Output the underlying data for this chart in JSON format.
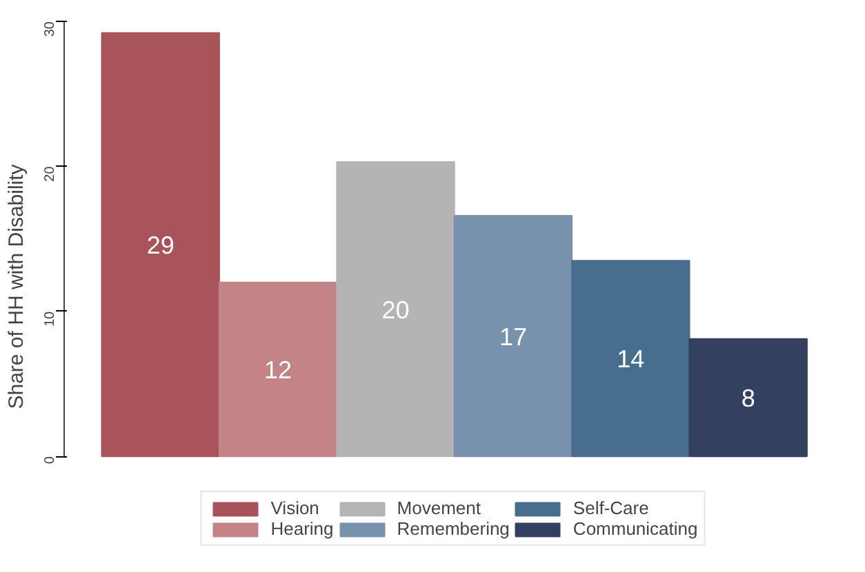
{
  "chart_data": {
    "type": "bar",
    "ylabel": "Share of HH with Disability",
    "categories": [
      null,
      null,
      null,
      null,
      null,
      null
    ],
    "series": [
      {
        "name": "Vision",
        "color": "#a8545a",
        "values": [
          29.2,
          null,
          null,
          null,
          null,
          null
        ],
        "value_labels": [
          "29",
          null,
          null,
          null,
          null,
          null
        ]
      },
      {
        "name": "Hearing",
        "color": "#c28487",
        "values": [
          null,
          12.0,
          null,
          null,
          null,
          null
        ],
        "value_labels": [
          null,
          "12",
          null,
          null,
          null,
          null
        ]
      },
      {
        "name": "Movement",
        "color": "#b4b4b4",
        "values": [
          null,
          null,
          20.3,
          null,
          null,
          null
        ],
        "value_labels": [
          null,
          null,
          "20",
          null,
          null,
          null
        ]
      },
      {
        "name": "Remembering",
        "color": "#7892ad",
        "values": [
          null,
          null,
          null,
          16.6,
          null,
          null
        ],
        "value_labels": [
          null,
          null,
          null,
          "17",
          null,
          null
        ]
      },
      {
        "name": "Self-Care",
        "color": "#486e8e",
        "values": [
          null,
          null,
          null,
          null,
          13.5,
          null
        ],
        "value_labels": [
          null,
          null,
          null,
          null,
          "14",
          null
        ]
      },
      {
        "name": "Communicating",
        "color": "#33405f",
        "values": [
          null,
          null,
          null,
          null,
          null,
          8.1
        ],
        "value_labels": [
          null,
          null,
          null,
          null,
          null,
          "8"
        ]
      }
    ],
    "stacked": true,
    "ylim": [
      0,
      30
    ],
    "yticks": [
      0,
      10,
      20,
      30
    ],
    "tick_labels": "y",
    "grid": false,
    "legend": "bottom"
  }
}
